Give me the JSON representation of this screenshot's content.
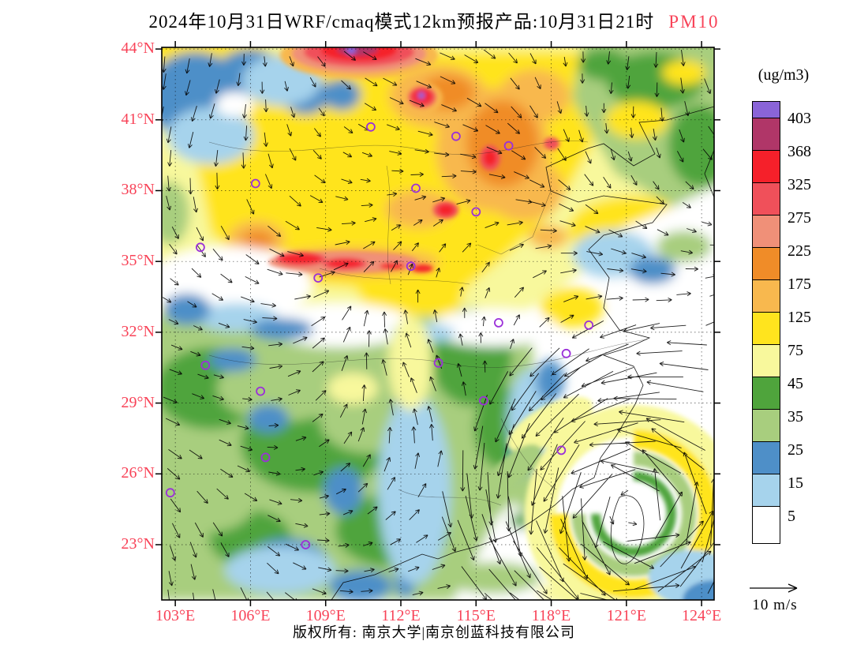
{
  "title": {
    "main": "2024年10月31日WRF/cmaq模式12km预报产品:10月31日21时",
    "pollutant": "PM10",
    "pollutant_color": "#F84358"
  },
  "axes": {
    "lat_labels": [
      "44°N",
      "41°N",
      "38°N",
      "35°N",
      "32°N",
      "29°N",
      "26°N",
      "23°N"
    ],
    "lon_labels": [
      "103°E",
      "106°E",
      "109°E",
      "112°E",
      "115°E",
      "118°E",
      "121°E",
      "124°E"
    ],
    "label_color": "#F84358"
  },
  "colorbar": {
    "unit_label": "(ug/m3)",
    "tick_labels": [
      "403",
      "368",
      "325",
      "275",
      "225",
      "175",
      "125",
      "75",
      "45",
      "35",
      "25",
      "15",
      "5"
    ],
    "colors_top_to_bottom": [
      "#8A64D8",
      "#B03668",
      "#F5202A",
      "#F0505A",
      "#F09078",
      "#F08C28",
      "#F8B84E",
      "#FFE41E",
      "#F8F89C",
      "#4FA43C",
      "#A8CE7E",
      "#4E8FC8",
      "#A6D3EC",
      "#FFFFFF"
    ]
  },
  "wind_legend": {
    "label": "10 m/s"
  },
  "footer": {
    "text": "版权所有: 南京大学|南京创蓝科技有限公司"
  },
  "chart_data": {
    "type": "heatmap",
    "title": "2024年10月31日WRF/cmaq模式12km预报产品:10月31日21时 PM10",
    "variable": "PM10",
    "unit": "ug/m3",
    "model": "WRF/cmaq",
    "grid_resolution_km": 12,
    "valid_time": "2024-10-31 21时",
    "lon_ticks": [
      103,
      106,
      109,
      112,
      115,
      118,
      121,
      124
    ],
    "lat_ticks": [
      44,
      41,
      38,
      35,
      32,
      29,
      26,
      23
    ],
    "levels": [
      5,
      15,
      25,
      35,
      45,
      75,
      125,
      175,
      225,
      275,
      325,
      368,
      403
    ],
    "palette_low_to_high": [
      "#FFFFFF",
      "#A6D3EC",
      "#4E8FC8",
      "#A8CE7E",
      "#4FA43C",
      "#F8F89C",
      "#FFE41E",
      "#F8B84E",
      "#F08C28",
      "#F09078",
      "#F0505A",
      "#F5202A",
      "#B03668",
      "#8A64D8"
    ],
    "grid_estimate": {
      "lons": [
        103,
        106,
        109,
        112,
        115,
        118,
        121,
        124
      ],
      "lats": [
        44,
        41,
        38,
        35,
        32,
        29,
        26,
        23
      ],
      "pm10": [
        [
          150,
          100,
          300,
          150,
          100,
          60,
          45,
          30
        ],
        [
          20,
          100,
          100,
          175,
          200,
          200,
          50,
          40
        ],
        [
          40,
          90,
          100,
          110,
          200,
          120,
          60,
          20
        ],
        [
          50,
          150,
          300,
          200,
          110,
          100,
          5,
          5
        ],
        [
          5,
          20,
          40,
          80,
          50,
          10,
          5,
          5
        ],
        [
          40,
          50,
          45,
          20,
          40,
          10,
          5,
          5
        ],
        [
          25,
          45,
          50,
          20,
          35,
          40,
          80,
          40
        ],
        [
          15,
          40,
          25,
          15,
          20,
          45,
          60,
          80
        ]
      ]
    },
    "wind": {
      "reference_label": "10 m/s",
      "cyclone_center_approx": {
        "lon": 121.3,
        "lat": 24.3
      }
    },
    "stations_lonlat": [
      [
        110.8,
        40.7
      ],
      [
        114.2,
        40.3
      ],
      [
        116.3,
        39.9
      ],
      [
        106.2,
        38.3
      ],
      [
        112.6,
        38.1
      ],
      [
        115.0,
        37.1
      ],
      [
        104.0,
        35.6
      ],
      [
        112.4,
        34.8
      ],
      [
        108.7,
        34.3
      ],
      [
        115.9,
        32.4
      ],
      [
        119.5,
        32.3
      ],
      [
        118.6,
        31.1
      ],
      [
        113.5,
        30.7
      ],
      [
        104.2,
        30.6
      ],
      [
        106.4,
        29.5
      ],
      [
        115.3,
        29.1
      ],
      [
        118.4,
        27.0
      ],
      [
        106.6,
        26.7
      ],
      [
        102.8,
        25.2
      ],
      [
        108.2,
        23.0
      ]
    ]
  }
}
